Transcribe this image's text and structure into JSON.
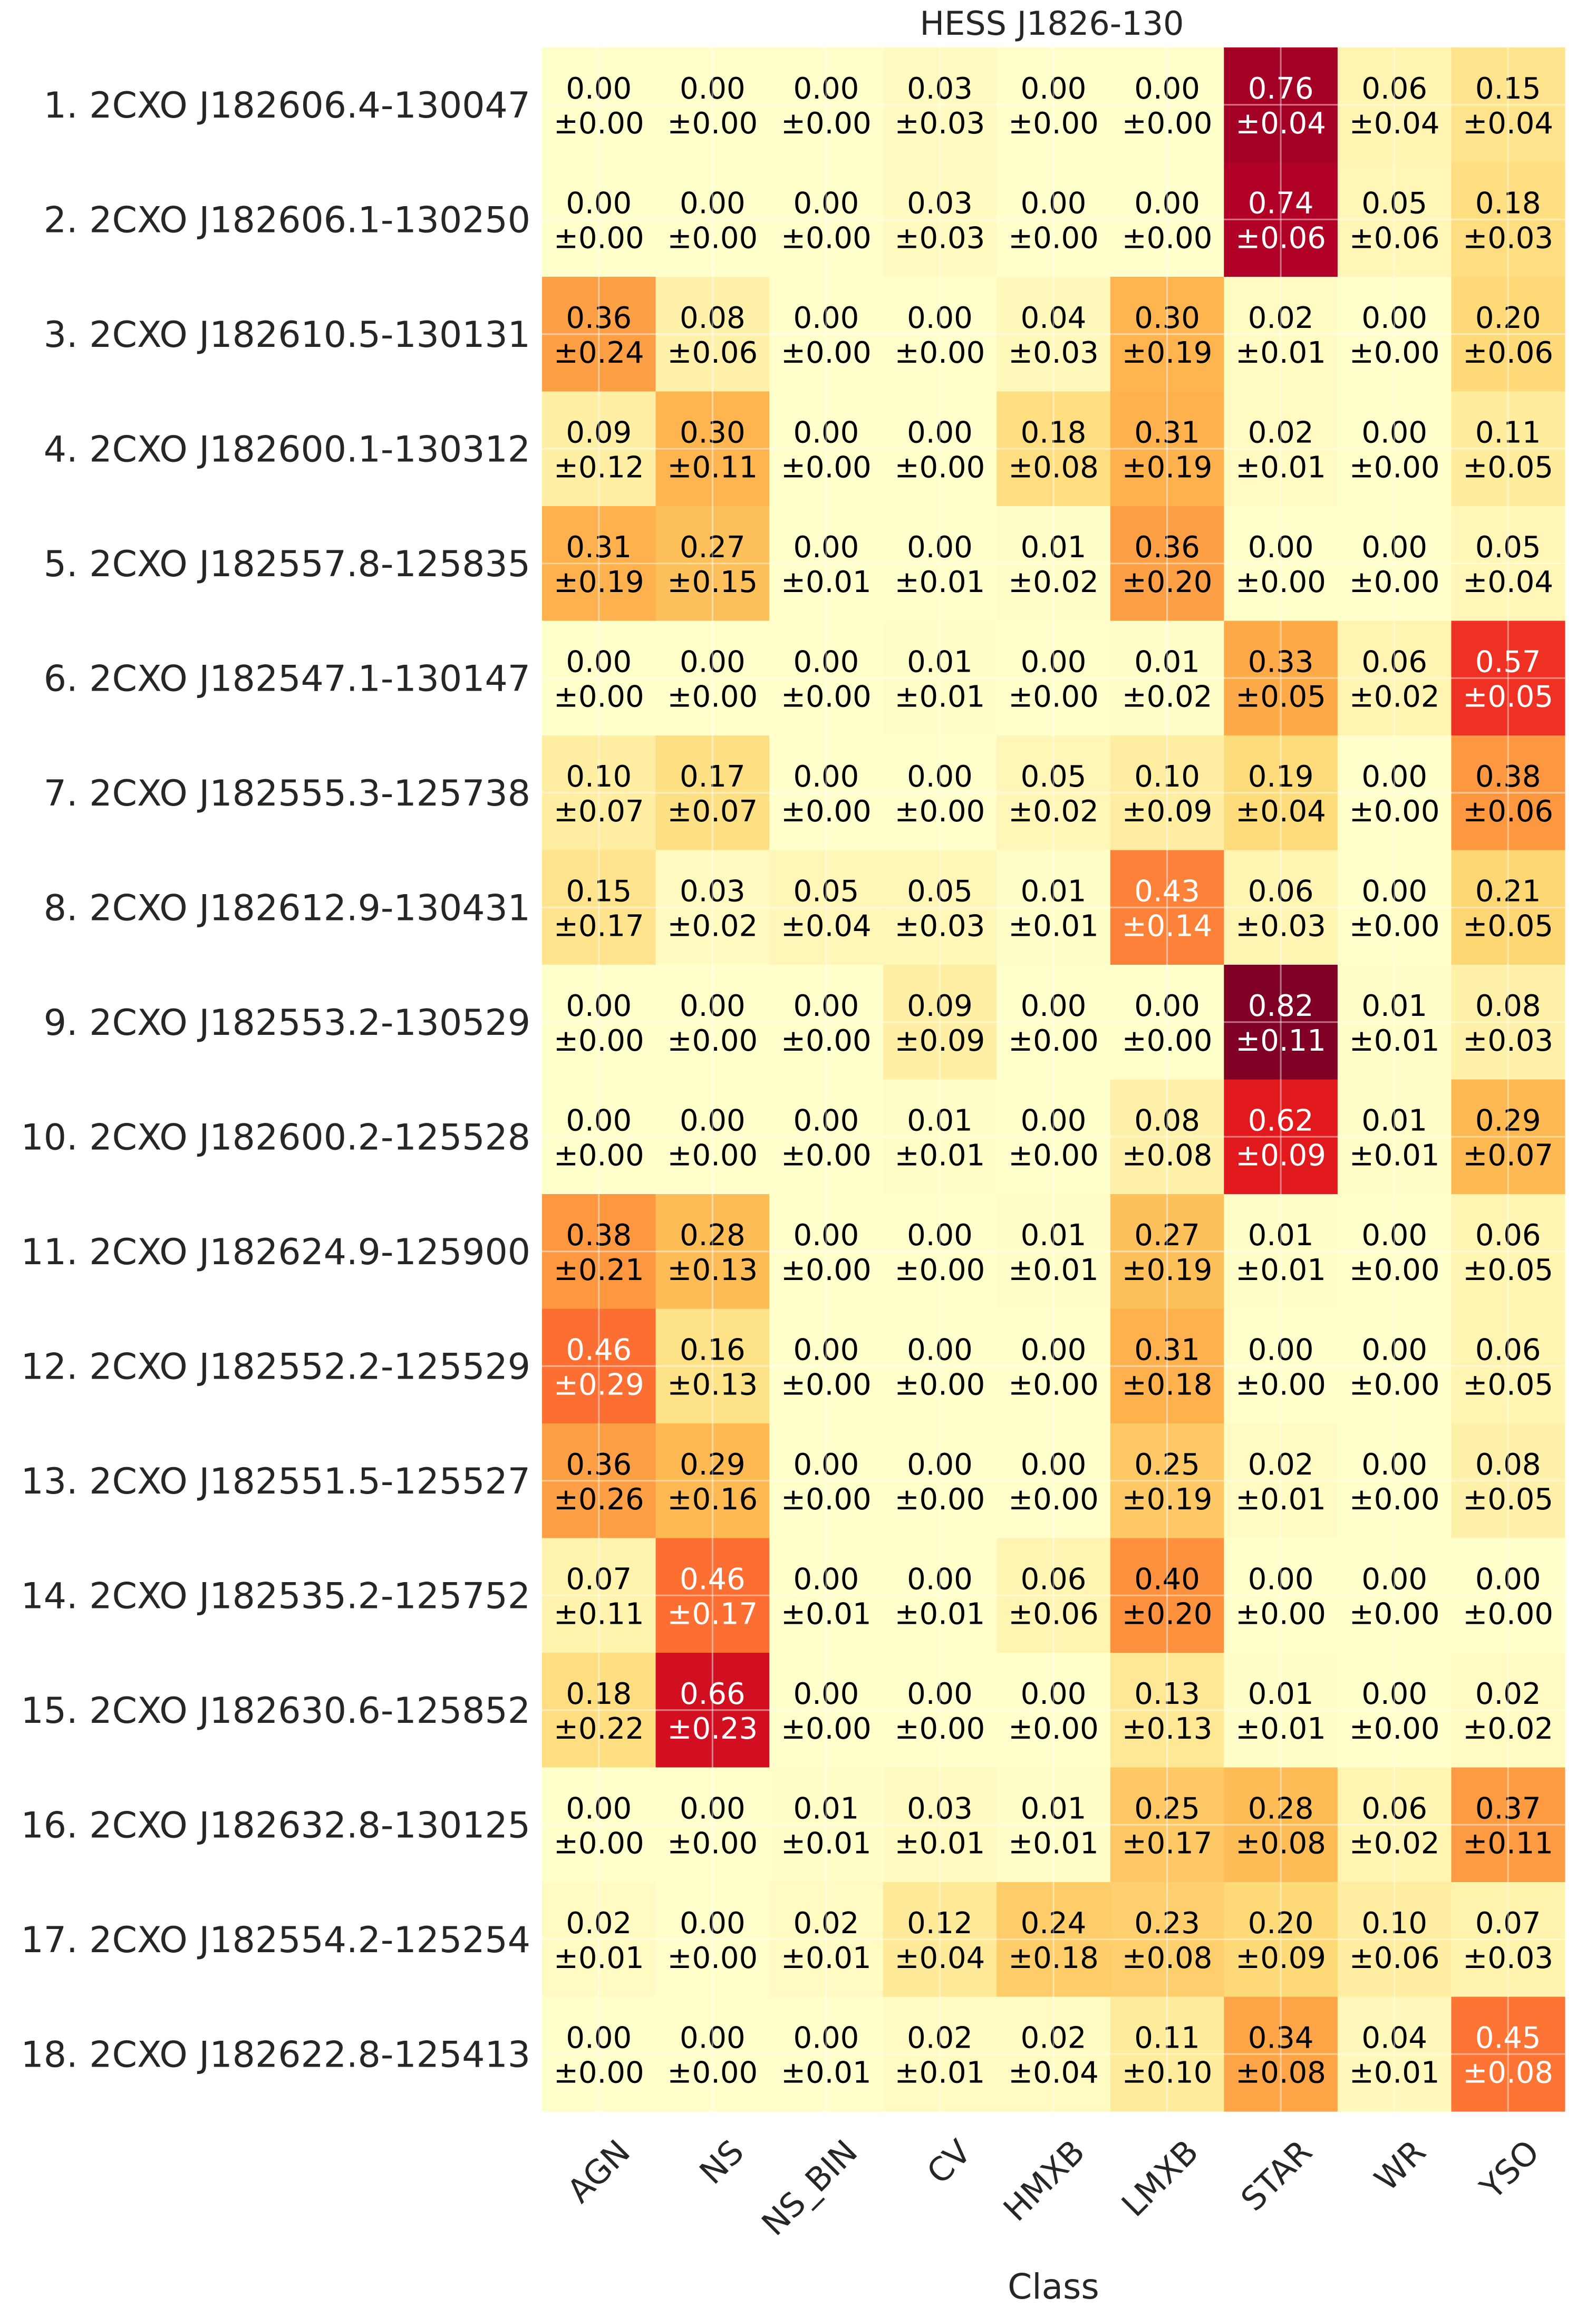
{
  "chart_data": {
    "type": "heatmap",
    "title": "HESS J1826-130",
    "xlabel": "Class",
    "ylabel": "",
    "columns": [
      "AGN",
      "NS",
      "NS_BIN",
      "CV",
      "HMXB",
      "LMXB",
      "STAR",
      "WR",
      "YSO"
    ],
    "rows": [
      {
        "label": "1.  2CXO J182606.4-130047",
        "values": [
          0.0,
          0.0,
          0.0,
          0.03,
          0.0,
          0.0,
          0.76,
          0.06,
          0.15
        ],
        "errors": [
          0.0,
          0.0,
          0.0,
          0.03,
          0.0,
          0.0,
          0.04,
          0.04,
          0.04
        ]
      },
      {
        "label": "2.  2CXO J182606.1-130250",
        "values": [
          0.0,
          0.0,
          0.0,
          0.03,
          0.0,
          0.0,
          0.74,
          0.05,
          0.18
        ],
        "errors": [
          0.0,
          0.0,
          0.0,
          0.03,
          0.0,
          0.0,
          0.06,
          0.06,
          0.03
        ]
      },
      {
        "label": "3.  2CXO J182610.5-130131",
        "values": [
          0.36,
          0.08,
          0.0,
          0.0,
          0.04,
          0.3,
          0.02,
          0.0,
          0.2
        ],
        "errors": [
          0.24,
          0.06,
          0.0,
          0.0,
          0.03,
          0.19,
          0.01,
          0.0,
          0.06
        ]
      },
      {
        "label": "4.  2CXO J182600.1-130312",
        "values": [
          0.09,
          0.3,
          0.0,
          0.0,
          0.18,
          0.31,
          0.02,
          0.0,
          0.11
        ],
        "errors": [
          0.12,
          0.11,
          0.0,
          0.0,
          0.08,
          0.19,
          0.01,
          0.0,
          0.05
        ]
      },
      {
        "label": "5.  2CXO J182557.8-125835",
        "values": [
          0.31,
          0.27,
          0.0,
          0.0,
          0.01,
          0.36,
          0.0,
          0.0,
          0.05
        ],
        "errors": [
          0.19,
          0.15,
          0.01,
          0.01,
          0.02,
          0.2,
          0.0,
          0.0,
          0.04
        ]
      },
      {
        "label": "6.  2CXO J182547.1-130147",
        "values": [
          0.0,
          0.0,
          0.0,
          0.01,
          0.0,
          0.01,
          0.33,
          0.06,
          0.57
        ],
        "errors": [
          0.0,
          0.0,
          0.0,
          0.01,
          0.0,
          0.02,
          0.05,
          0.02,
          0.05
        ]
      },
      {
        "label": "7.  2CXO J182555.3-125738",
        "values": [
          0.1,
          0.17,
          0.0,
          0.0,
          0.05,
          0.1,
          0.19,
          0.0,
          0.38
        ],
        "errors": [
          0.07,
          0.07,
          0.0,
          0.0,
          0.02,
          0.09,
          0.04,
          0.0,
          0.06
        ]
      },
      {
        "label": "8.  2CXO J182612.9-130431",
        "values": [
          0.15,
          0.03,
          0.05,
          0.05,
          0.01,
          0.43,
          0.06,
          0.0,
          0.21
        ],
        "errors": [
          0.17,
          0.02,
          0.04,
          0.03,
          0.01,
          0.14,
          0.03,
          0.0,
          0.05
        ]
      },
      {
        "label": "9.  2CXO J182553.2-130529",
        "values": [
          0.0,
          0.0,
          0.0,
          0.09,
          0.0,
          0.0,
          0.82,
          0.01,
          0.08
        ],
        "errors": [
          0.0,
          0.0,
          0.0,
          0.09,
          0.0,
          0.0,
          0.11,
          0.01,
          0.03
        ]
      },
      {
        "label": "10.  2CXO J182600.2-125528",
        "values": [
          0.0,
          0.0,
          0.0,
          0.01,
          0.0,
          0.08,
          0.62,
          0.01,
          0.29
        ],
        "errors": [
          0.0,
          0.0,
          0.0,
          0.01,
          0.0,
          0.08,
          0.09,
          0.01,
          0.07
        ]
      },
      {
        "label": "11.  2CXO J182624.9-125900",
        "values": [
          0.38,
          0.28,
          0.0,
          0.0,
          0.01,
          0.27,
          0.01,
          0.0,
          0.06
        ],
        "errors": [
          0.21,
          0.13,
          0.0,
          0.0,
          0.01,
          0.19,
          0.01,
          0.0,
          0.05
        ]
      },
      {
        "label": "12.  2CXO J182552.2-125529",
        "values": [
          0.46,
          0.16,
          0.0,
          0.0,
          0.0,
          0.31,
          0.0,
          0.0,
          0.06
        ],
        "errors": [
          0.29,
          0.13,
          0.0,
          0.0,
          0.0,
          0.18,
          0.0,
          0.0,
          0.05
        ]
      },
      {
        "label": "13.  2CXO J182551.5-125527",
        "values": [
          0.36,
          0.29,
          0.0,
          0.0,
          0.0,
          0.25,
          0.02,
          0.0,
          0.08
        ],
        "errors": [
          0.26,
          0.16,
          0.0,
          0.0,
          0.0,
          0.19,
          0.01,
          0.0,
          0.05
        ]
      },
      {
        "label": "14.  2CXO J182535.2-125752",
        "values": [
          0.07,
          0.46,
          0.0,
          0.0,
          0.06,
          0.4,
          0.0,
          0.0,
          0.0
        ],
        "errors": [
          0.11,
          0.17,
          0.01,
          0.01,
          0.06,
          0.2,
          0.0,
          0.0,
          0.0
        ]
      },
      {
        "label": "15.  2CXO J182630.6-125852",
        "values": [
          0.18,
          0.66,
          0.0,
          0.0,
          0.0,
          0.13,
          0.01,
          0.0,
          0.02
        ],
        "errors": [
          0.22,
          0.23,
          0.0,
          0.0,
          0.0,
          0.13,
          0.01,
          0.0,
          0.02
        ]
      },
      {
        "label": "16.  2CXO J182632.8-130125",
        "values": [
          0.0,
          0.0,
          0.01,
          0.03,
          0.01,
          0.25,
          0.28,
          0.06,
          0.37
        ],
        "errors": [
          0.0,
          0.0,
          0.01,
          0.01,
          0.01,
          0.17,
          0.08,
          0.02,
          0.11
        ]
      },
      {
        "label": "17.  2CXO J182554.2-125254",
        "values": [
          0.02,
          0.0,
          0.02,
          0.12,
          0.24,
          0.23,
          0.2,
          0.1,
          0.07
        ],
        "errors": [
          0.01,
          0.0,
          0.01,
          0.04,
          0.18,
          0.08,
          0.09,
          0.06,
          0.03
        ]
      },
      {
        "label": "18.  2CXO J182622.8-125413",
        "values": [
          0.0,
          0.0,
          0.0,
          0.02,
          0.02,
          0.11,
          0.34,
          0.04,
          0.45
        ],
        "errors": [
          0.0,
          0.0,
          0.01,
          0.01,
          0.04,
          0.1,
          0.08,
          0.01,
          0.08
        ]
      }
    ],
    "value_format": "two-decimal with ± error on second line",
    "colormap": "YlOrRd",
    "vmin": 0,
    "vmax": 0.82,
    "grid": true,
    "legend": "none"
  }
}
